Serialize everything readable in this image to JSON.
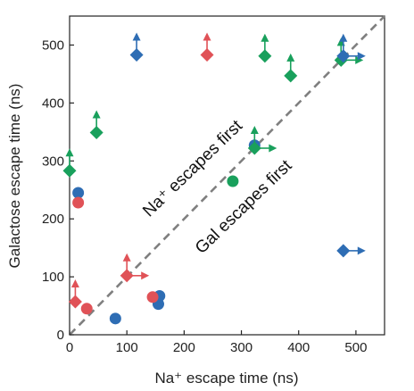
{
  "chart_data": {
    "type": "scatter",
    "title": "",
    "xlabel": "Na⁺ escape time (ns)",
    "ylabel": "Galactose escape time (ns)",
    "xlim": [
      0,
      550
    ],
    "ylim": [
      0,
      550
    ],
    "xticks": [
      0,
      100,
      200,
      300,
      400,
      500
    ],
    "yticks": [
      0,
      100,
      200,
      300,
      400,
      500
    ],
    "grid": false,
    "legend": "none",
    "colors": {
      "red": "#e05257",
      "blue": "#2e6db4",
      "green": "#19a05c",
      "diagonal": "#7f7f7f"
    },
    "diagonal": {
      "from": [
        0,
        0
      ],
      "to": [
        550,
        550
      ],
      "style": "dashed"
    },
    "region_labels": {
      "upper": "Na⁺ escapes first",
      "lower": "Gal escapes first"
    },
    "points": [
      {
        "x": 80,
        "y": 28,
        "color": "blue",
        "marker": "circle"
      },
      {
        "x": 155,
        "y": 53,
        "color": "blue",
        "marker": "circle"
      },
      {
        "x": 157,
        "y": 67,
        "color": "blue",
        "marker": "circle"
      },
      {
        "x": 15,
        "y": 245,
        "color": "blue",
        "marker": "circle"
      },
      {
        "x": 323,
        "y": 327,
        "color": "blue",
        "marker": "circle"
      },
      {
        "x": 15,
        "y": 228,
        "color": "red",
        "marker": "circle"
      },
      {
        "x": 30,
        "y": 45,
        "color": "red",
        "marker": "circle"
      },
      {
        "x": 145,
        "y": 65,
        "color": "red",
        "marker": "circle"
      },
      {
        "x": 285,
        "y": 265,
        "color": "green",
        "marker": "circle"
      },
      {
        "x": 10,
        "y": 57,
        "color": "red",
        "marker": "diamond",
        "arrows": [
          "up"
        ]
      },
      {
        "x": 100,
        "y": 102,
        "color": "red",
        "marker": "diamond",
        "arrows": [
          "up",
          "right"
        ]
      },
      {
        "x": 240,
        "y": 483,
        "color": "red",
        "marker": "diamond",
        "arrows": [
          "up"
        ]
      },
      {
        "x": 0,
        "y": 283,
        "color": "green",
        "marker": "diamond",
        "arrows": [
          "up"
        ]
      },
      {
        "x": 47,
        "y": 349,
        "color": "green",
        "marker": "diamond",
        "arrows": [
          "up"
        ]
      },
      {
        "x": 341,
        "y": 481,
        "color": "green",
        "marker": "diamond",
        "arrows": [
          "up"
        ]
      },
      {
        "x": 386,
        "y": 447,
        "color": "green",
        "marker": "diamond",
        "arrows": [
          "up"
        ]
      },
      {
        "x": 323,
        "y": 322,
        "color": "green",
        "marker": "diamond",
        "arrows": [
          "up",
          "right"
        ]
      },
      {
        "x": 474,
        "y": 474,
        "color": "green",
        "marker": "diamond",
        "arrows": [
          "up",
          "right"
        ]
      },
      {
        "x": 117,
        "y": 483,
        "color": "blue",
        "marker": "diamond",
        "arrows": [
          "up"
        ]
      },
      {
        "x": 478,
        "y": 481,
        "color": "blue",
        "marker": "diamond",
        "arrows": [
          "up",
          "right"
        ]
      },
      {
        "x": 478,
        "y": 145,
        "color": "blue",
        "marker": "diamond",
        "arrows": [
          "right"
        ]
      }
    ]
  }
}
